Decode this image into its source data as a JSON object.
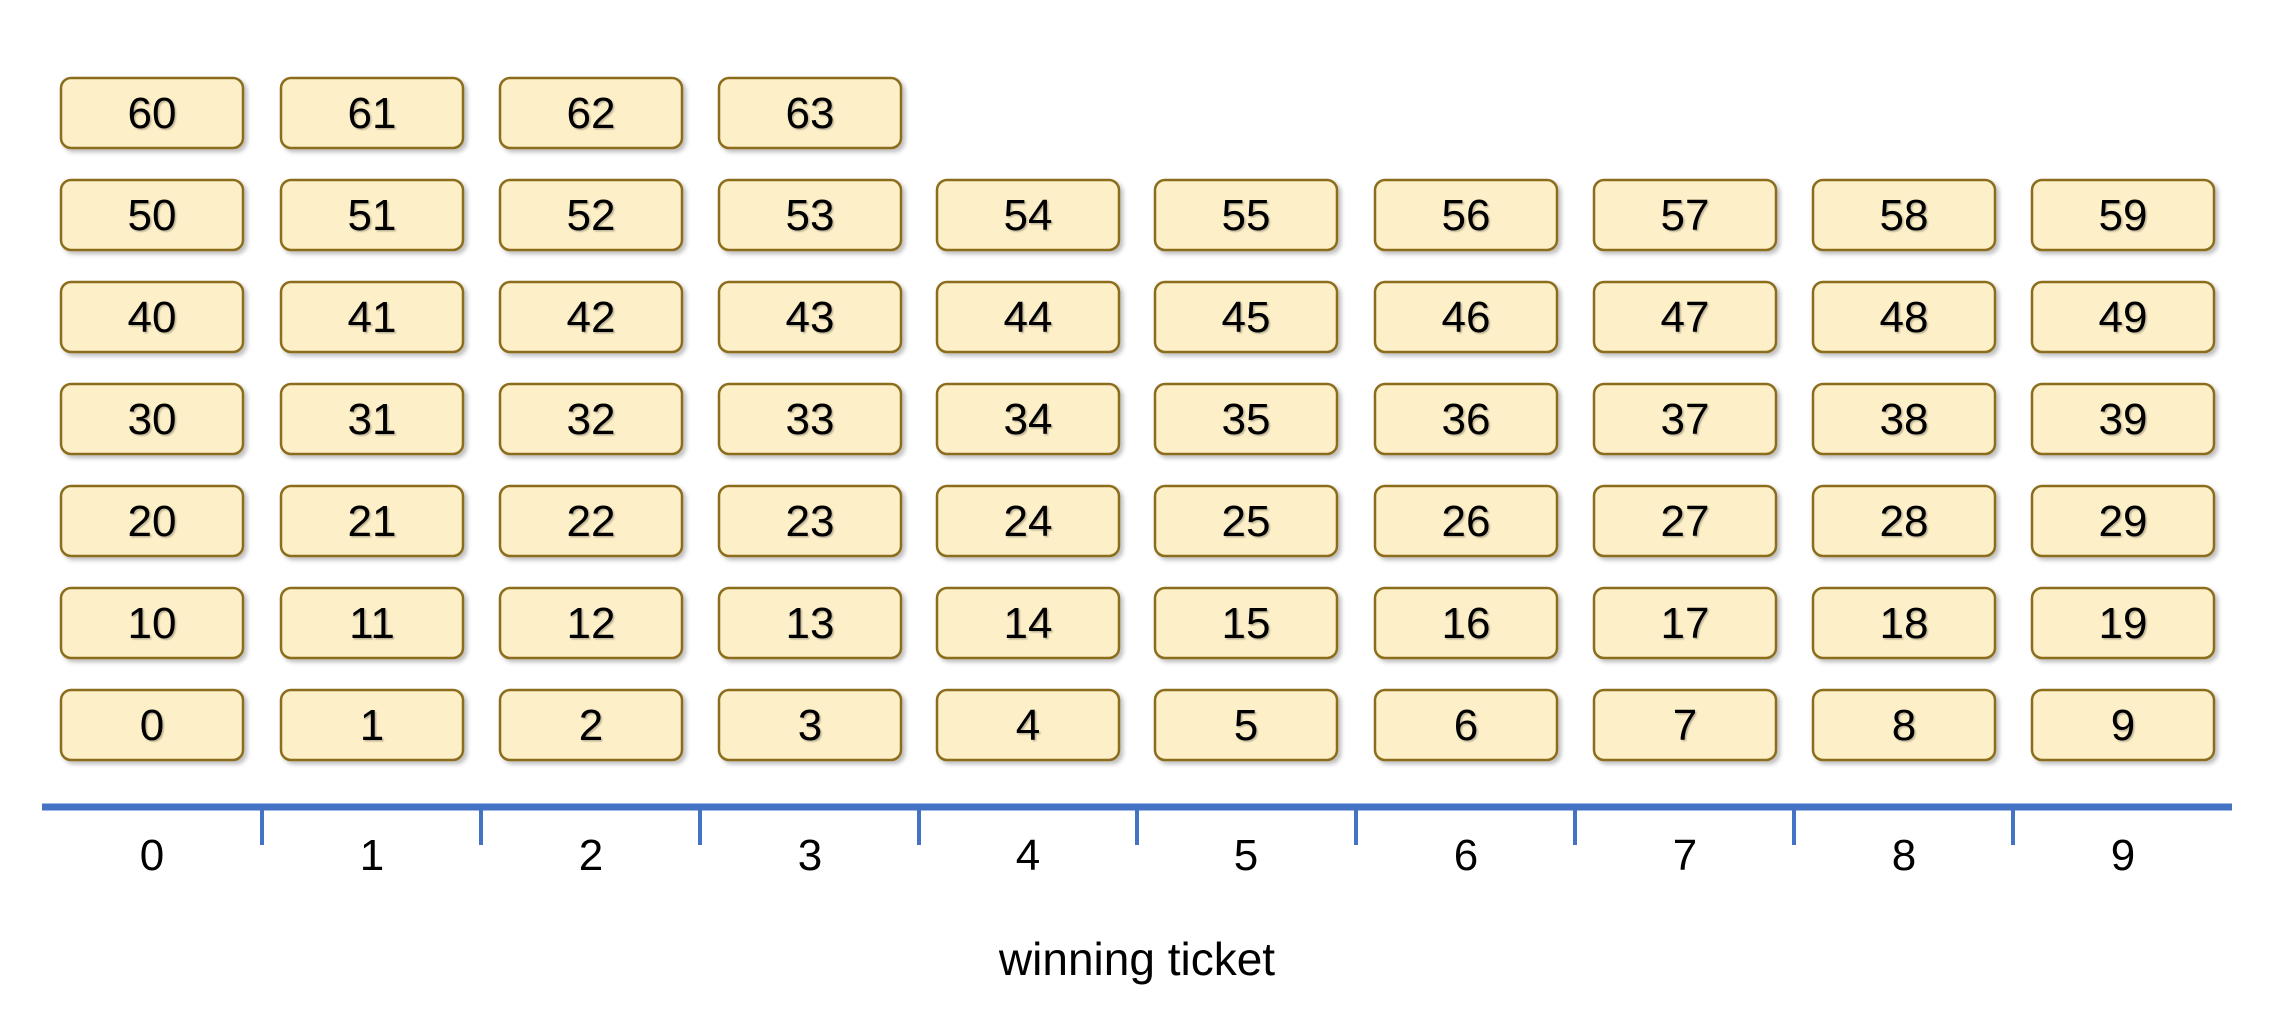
{
  "tickets": [
    "0",
    "1",
    "2",
    "3",
    "4",
    "5",
    "6",
    "7",
    "8",
    "9",
    "10",
    "11",
    "12",
    "13",
    "14",
    "15",
    "16",
    "17",
    "18",
    "19",
    "20",
    "21",
    "22",
    "23",
    "24",
    "25",
    "26",
    "27",
    "28",
    "29",
    "30",
    "31",
    "32",
    "33",
    "34",
    "35",
    "36",
    "37",
    "38",
    "39",
    "40",
    "41",
    "42",
    "43",
    "44",
    "45",
    "46",
    "47",
    "48",
    "49",
    "50",
    "51",
    "52",
    "53",
    "54",
    "55",
    "56",
    "57",
    "58",
    "59",
    "60",
    "61",
    "62",
    "63"
  ],
  "axis_labels": [
    "0",
    "1",
    "2",
    "3",
    "4",
    "5",
    "6",
    "7",
    "8",
    "9"
  ],
  "caption": "winning ticket",
  "colors": {
    "ticket_fill": "#fdefc8",
    "ticket_border": "#8c6d1f",
    "axis_line": "#4472c4",
    "text": "#000000"
  }
}
